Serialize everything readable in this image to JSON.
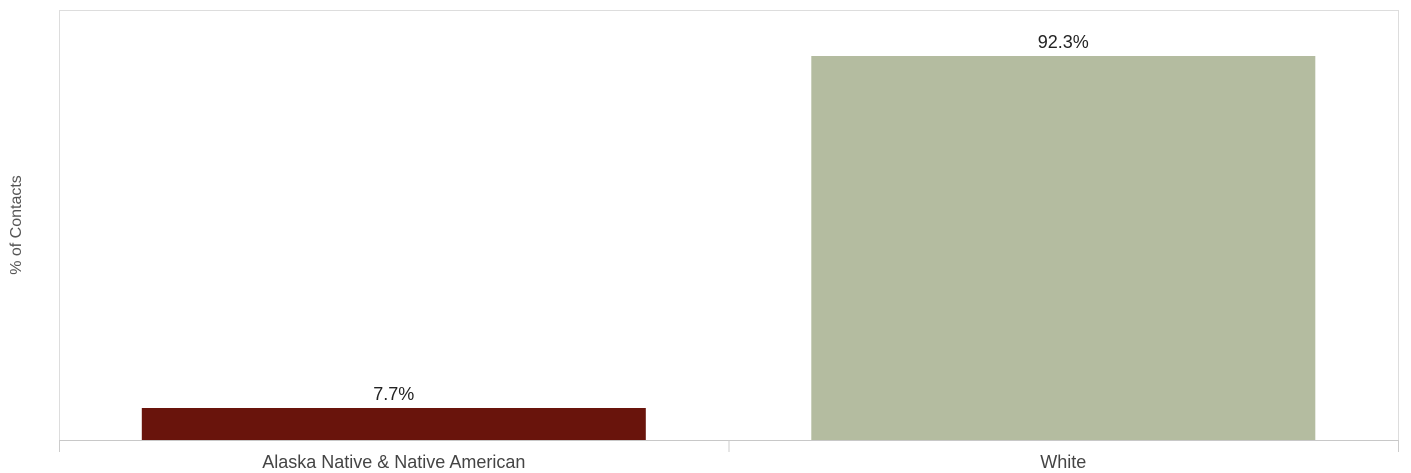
{
  "chart_data": {
    "type": "bar",
    "categories": [
      "Alaska Native & Native American",
      "White"
    ],
    "values": [
      7.7,
      92.3
    ],
    "value_labels": [
      "7.7%",
      "92.3%"
    ],
    "colors": [
      "#69140c",
      "#b4bca0"
    ],
    "ylabel": "% of Contacts",
    "xlabel": "",
    "ylim": [
      0,
      100
    ],
    "grid": false,
    "legend": "none"
  }
}
